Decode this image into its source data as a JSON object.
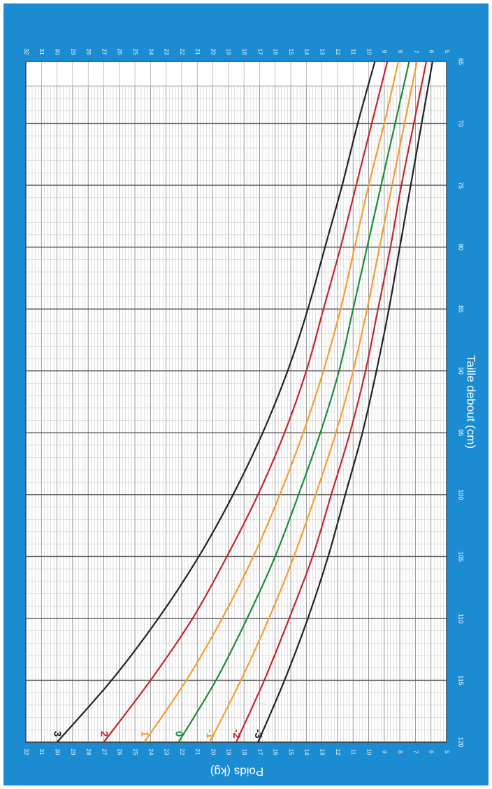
{
  "colors": {
    "frame": "#1b8bd2",
    "grid_minor": "#b3b3b3",
    "grid_major": "#555555",
    "plot_bg": "#ffffff"
  },
  "chart_data": {
    "type": "line",
    "orientation": "rotated-90-clockwise",
    "xlabel": "Taille debout (cm)",
    "ylabel": "Poids (kg)",
    "xlim": [
      65,
      120
    ],
    "ylim": [
      5,
      32
    ],
    "x_ticks": [
      "65",
      "70",
      "75",
      "80",
      "85",
      "90",
      "95",
      "100",
      "105",
      "110",
      "115",
      "120"
    ],
    "y_ticks": [
      "5",
      "6",
      "7",
      "8",
      "9",
      "10",
      "11",
      "12",
      "13",
      "14",
      "15",
      "16",
      "17",
      "18",
      "19",
      "20",
      "21",
      "22",
      "23",
      "24",
      "25",
      "26",
      "27",
      "28",
      "29",
      "30",
      "31",
      "32"
    ],
    "grid": true,
    "x": [
      65,
      70,
      75,
      80,
      85,
      90,
      95,
      100,
      105,
      110,
      115,
      120
    ],
    "series": [
      {
        "name": "3",
        "color": "#222222",
        "values": [
          9.6,
          10.7,
          11.7,
          12.8,
          13.9,
          15.2,
          16.8,
          18.7,
          20.9,
          23.5,
          26.5,
          30.0
        ]
      },
      {
        "name": "2",
        "color": "#c0272d",
        "values": [
          8.8,
          9.8,
          10.8,
          11.8,
          12.9,
          14.0,
          15.4,
          17.1,
          19.1,
          21.3,
          24.0,
          27.0
        ]
      },
      {
        "name": "1",
        "color": "#f39c34",
        "values": [
          8.1,
          9.0,
          10.0,
          10.9,
          11.8,
          12.9,
          14.2,
          15.7,
          17.4,
          19.4,
          21.7,
          24.4
        ]
      },
      {
        "name": "0",
        "color": "#1e8a3c",
        "values": [
          7.4,
          8.3,
          9.2,
          10.1,
          11.0,
          11.9,
          13.1,
          14.5,
          16.0,
          17.8,
          19.8,
          22.2
        ]
      },
      {
        "name": "-1",
        "color": "#f39c34",
        "values": [
          6.9,
          7.7,
          8.5,
          9.3,
          10.1,
          11.0,
          12.1,
          13.4,
          14.8,
          16.4,
          18.2,
          20.2
        ]
      },
      {
        "name": "-2",
        "color": "#c0272d",
        "values": [
          6.3,
          7.1,
          7.9,
          8.6,
          9.4,
          10.2,
          11.2,
          12.4,
          13.6,
          15.1,
          16.7,
          18.5
        ]
      },
      {
        "name": "-3",
        "color": "#222222",
        "values": [
          5.9,
          6.6,
          7.3,
          8.0,
          8.7,
          9.5,
          10.4,
          11.5,
          12.6,
          13.9,
          15.4,
          17.1
        ]
      }
    ]
  }
}
